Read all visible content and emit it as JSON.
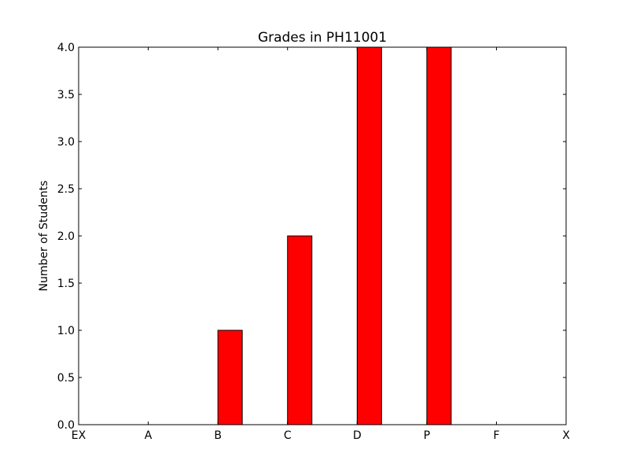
{
  "chart_data": {
    "type": "bar",
    "title": "Grades in PH11001",
    "xlabel": "",
    "ylabel": "Number of Students",
    "categories": [
      "EX",
      "A",
      "B",
      "C",
      "D",
      "P",
      "F",
      "X"
    ],
    "values": [
      0,
      0,
      1,
      2,
      4,
      4,
      0,
      0
    ],
    "ylim": [
      0,
      4.0
    ],
    "yticks": [
      "0.0",
      "0.5",
      "1.0",
      "1.5",
      "2.0",
      "2.5",
      "3.0",
      "3.5",
      "4.0"
    ],
    "grid": false,
    "legend": "none",
    "bar_color": "#ff0000",
    "edge_color": "#000000"
  }
}
